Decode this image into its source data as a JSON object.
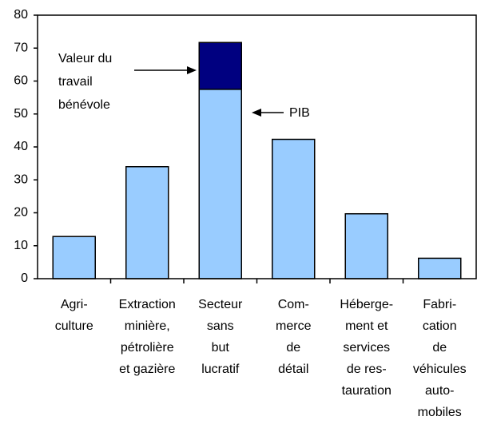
{
  "chart_data": {
    "type": "stacked_bar",
    "categories": [
      "Agri-\nculture",
      "Extraction\nminière,\npétrolière\net gazière",
      "Secteur\nsans\nbut\nlucratif",
      "Com-\nmerce\nde\ndétail",
      "Héberge-\nment et\nservices\nde res-\ntauration",
      "Fabri-\ncation\nde\nvéhicules\nauto-\nmobiles"
    ],
    "series": [
      {
        "name": "PIB",
        "color": "#99ccff",
        "values": [
          12.8,
          34,
          57.5,
          42.3,
          19.7,
          6.2
        ]
      },
      {
        "name": "Valeur du travail bénévole",
        "color": "#000080",
        "values": [
          null,
          null,
          14.2,
          null,
          null,
          null
        ]
      }
    ],
    "ylim": [
      0,
      80
    ],
    "yticks": [
      0,
      10,
      20,
      30,
      40,
      50,
      60,
      70,
      80
    ],
    "grid": false
  }
}
